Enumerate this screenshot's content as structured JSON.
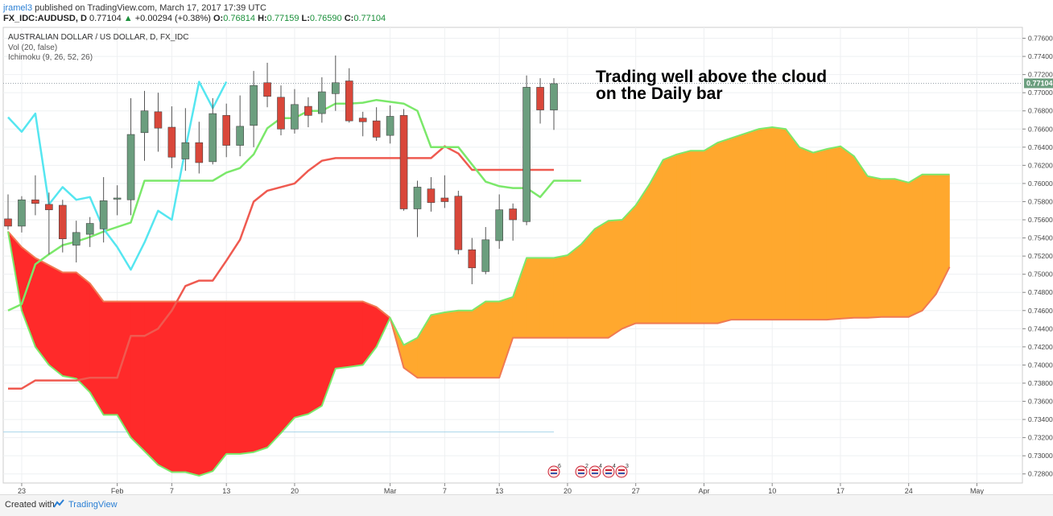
{
  "header": {
    "publisher": "jramel3",
    "published_text": "published on TradingView.com, March 17, 2017 17:39 UTC",
    "symbol_line": "FX_IDC:AUDUSD, D",
    "last": "0.77104",
    "change": "+0.00294 (+0.38%)",
    "open_label": "O:",
    "open": "0.76814",
    "high_label": "H:",
    "high": "0.77159",
    "low_label": "L:",
    "low": "0.76590",
    "close_label": "C:",
    "close": "0.77104"
  },
  "legend": {
    "title": "AUSTRALIAN DOLLAR / US DOLLAR, D, FX_IDC",
    "volume": "Vol (20, false)",
    "ichimoku": "Ichimoku (9, 26, 52, 26)"
  },
  "annotation": {
    "line1": "Trading well above the cloud",
    "line2": "on the Daily bar"
  },
  "price_tag": "0.77104",
  "footer": {
    "made_with": "Created with",
    "brand": "TradingView"
  },
  "event_badges": [
    "6",
    "2",
    "4",
    "4",
    "3"
  ],
  "colors": {
    "up": "#6b9e7e",
    "down": "#d9473a",
    "tenkan": "#55e6f0",
    "kijun": "#ef5a50",
    "chikou": "#7be86a",
    "cloud_bear": "#ff2a2a",
    "cloud_bull": "#ffa82e",
    "span_a": "#7be86a",
    "span_b": "#f07a52"
  },
  "chart_data": {
    "type": "candlestick",
    "title": "AUSTRALIAN DOLLAR / US DOLLAR, D, FX_IDC",
    "y_axis_ticks": [
      "0.72800",
      "0.73000",
      "0.73200",
      "0.73400",
      "0.73600",
      "0.73800",
      "0.74000",
      "0.74200",
      "0.74400",
      "0.74600",
      "0.74800",
      "0.75000",
      "0.75200",
      "0.75400",
      "0.75600",
      "0.75800",
      "0.76000",
      "0.76200",
      "0.76400",
      "0.76600",
      "0.76800",
      "0.77000",
      "0.77200",
      "0.77400",
      "0.77600"
    ],
    "x_axis_ticks": [
      "23",
      "Feb",
      "7",
      "13",
      "20",
      "Mar",
      "7",
      "13",
      "20",
      "27",
      "Apr",
      "10",
      "17",
      "24",
      "May"
    ],
    "ylim": [
      0.727,
      0.7772
    ],
    "candles": [
      {
        "o": 0.7561,
        "h": 0.7588,
        "l": 0.7549,
        "c": 0.7553
      },
      {
        "o": 0.7553,
        "h": 0.7586,
        "l": 0.7546,
        "c": 0.7582
      },
      {
        "o": 0.7582,
        "h": 0.7609,
        "l": 0.7565,
        "c": 0.7578
      },
      {
        "o": 0.7577,
        "h": 0.759,
        "l": 0.7522,
        "c": 0.7571
      },
      {
        "o": 0.7576,
        "h": 0.7582,
        "l": 0.7524,
        "c": 0.7539
      },
      {
        "o": 0.7532,
        "h": 0.7559,
        "l": 0.7513,
        "c": 0.7546
      },
      {
        "o": 0.7544,
        "h": 0.7563,
        "l": 0.753,
        "c": 0.7556
      },
      {
        "o": 0.755,
        "h": 0.7607,
        "l": 0.7535,
        "c": 0.7581
      },
      {
        "o": 0.7583,
        "h": 0.7598,
        "l": 0.7565,
        "c": 0.7584
      },
      {
        "o": 0.7582,
        "h": 0.7694,
        "l": 0.7565,
        "c": 0.7654
      },
      {
        "o": 0.7656,
        "h": 0.7702,
        "l": 0.7625,
        "c": 0.768
      },
      {
        "o": 0.7679,
        "h": 0.77,
        "l": 0.7635,
        "c": 0.7661
      },
      {
        "o": 0.7662,
        "h": 0.7685,
        "l": 0.7617,
        "c": 0.7629
      },
      {
        "o": 0.7627,
        "h": 0.7683,
        "l": 0.7614,
        "c": 0.7645
      },
      {
        "o": 0.7645,
        "h": 0.7668,
        "l": 0.7611,
        "c": 0.7623
      },
      {
        "o": 0.7624,
        "h": 0.7694,
        "l": 0.7621,
        "c": 0.7677
      },
      {
        "o": 0.7675,
        "h": 0.7688,
        "l": 0.7629,
        "c": 0.7642
      },
      {
        "o": 0.7642,
        "h": 0.7697,
        "l": 0.763,
        "c": 0.7663
      },
      {
        "o": 0.7664,
        "h": 0.7724,
        "l": 0.764,
        "c": 0.7708
      },
      {
        "o": 0.7711,
        "h": 0.7733,
        "l": 0.7684,
        "c": 0.7696
      },
      {
        "o": 0.7695,
        "h": 0.7708,
        "l": 0.7653,
        "c": 0.766
      },
      {
        "o": 0.766,
        "h": 0.7704,
        "l": 0.7655,
        "c": 0.7687
      },
      {
        "o": 0.7685,
        "h": 0.7695,
        "l": 0.7662,
        "c": 0.7675
      },
      {
        "o": 0.7677,
        "h": 0.7717,
        "l": 0.7667,
        "c": 0.7701
      },
      {
        "o": 0.7699,
        "h": 0.7741,
        "l": 0.768,
        "c": 0.7711
      },
      {
        "o": 0.7713,
        "h": 0.7727,
        "l": 0.7667,
        "c": 0.7669
      },
      {
        "o": 0.7672,
        "h": 0.7679,
        "l": 0.7652,
        "c": 0.7668
      },
      {
        "o": 0.7669,
        "h": 0.7684,
        "l": 0.7647,
        "c": 0.7651
      },
      {
        "o": 0.7653,
        "h": 0.7686,
        "l": 0.7644,
        "c": 0.7674
      },
      {
        "o": 0.7675,
        "h": 0.7682,
        "l": 0.757,
        "c": 0.7572
      },
      {
        "o": 0.7572,
        "h": 0.7603,
        "l": 0.7541,
        "c": 0.7596
      },
      {
        "o": 0.7594,
        "h": 0.7607,
        "l": 0.7569,
        "c": 0.7579
      },
      {
        "o": 0.7584,
        "h": 0.7609,
        "l": 0.7573,
        "c": 0.758
      },
      {
        "o": 0.7586,
        "h": 0.7592,
        "l": 0.7522,
        "c": 0.7527
      },
      {
        "o": 0.7527,
        "h": 0.754,
        "l": 0.7489,
        "c": 0.7507
      },
      {
        "o": 0.7503,
        "h": 0.7552,
        "l": 0.75,
        "c": 0.7538
      },
      {
        "o": 0.7537,
        "h": 0.7588,
        "l": 0.7528,
        "c": 0.7571
      },
      {
        "o": 0.7572,
        "h": 0.7578,
        "l": 0.7537,
        "c": 0.756
      },
      {
        "o": 0.7558,
        "h": 0.7719,
        "l": 0.7554,
        "c": 0.7706
      },
      {
        "o": 0.7706,
        "h": 0.7716,
        "l": 0.7666,
        "c": 0.7681
      },
      {
        "o": 0.7681,
        "h": 0.7716,
        "l": 0.7659,
        "c": 0.771
      }
    ],
    "series": [
      {
        "name": "Conversion line",
        "role": "tenkan",
        "start_index": 0,
        "values": [
          0.7673,
          0.7657,
          0.7677,
          0.7577,
          0.7596,
          0.7582,
          0.7585,
          0.755,
          0.753,
          0.7505,
          0.7535,
          0.757,
          0.756,
          0.7638,
          0.7712,
          0.7683,
          0.7712
        ]
      },
      {
        "name": "Base line",
        "role": "kijun",
        "start_index": 0,
        "values": [
          0.7374,
          0.7374,
          0.7383,
          0.7383,
          0.7383,
          0.7383,
          0.7386,
          0.7386,
          0.7386,
          0.7432,
          0.7432,
          0.744,
          0.746,
          0.7487,
          0.7493,
          0.7493,
          0.7515,
          0.7538,
          0.758,
          0.7592,
          0.7596,
          0.76,
          0.7614,
          0.7625,
          0.7628,
          0.7628,
          0.7628,
          0.7628,
          0.7628,
          0.7628,
          0.7628,
          0.7628,
          0.7641,
          0.7633,
          0.7615,
          0.7615,
          0.7615,
          0.7615,
          0.7615,
          0.7615,
          0.7615
        ]
      },
      {
        "name": "Lagging span",
        "role": "chikou",
        "start_index": 0,
        "values": [
          0.746,
          0.7467,
          0.7511,
          0.7522,
          0.7532,
          0.7536,
          0.7541,
          0.7547,
          0.7552,
          0.7557,
          0.7603,
          0.7603,
          0.7603,
          0.7603,
          0.7603,
          0.7603,
          0.7612,
          0.7617,
          0.7632,
          0.7661,
          0.7672,
          0.7672,
          0.768,
          0.768,
          0.7688,
          0.7688,
          0.7689,
          0.7692,
          0.769,
          0.7688,
          0.768,
          0.764,
          0.764,
          0.764,
          0.7621,
          0.7602,
          0.7597,
          0.7595,
          0.7595,
          0.7585,
          0.7603,
          0.7603,
          0.7603
        ]
      },
      {
        "name": "Lead 1",
        "role": "span_a",
        "start_index": 0,
        "values": [
          0.7547,
          0.746,
          0.742,
          0.74,
          0.7388,
          0.7385,
          0.737,
          0.7345,
          0.7345,
          0.732,
          0.7305,
          0.729,
          0.7282,
          0.7282,
          0.7278,
          0.7283,
          0.7302,
          0.7302,
          0.7304,
          0.7309,
          0.7325,
          0.7342,
          0.7346,
          0.7355,
          0.7396,
          0.7398,
          0.74,
          0.742,
          0.7452,
          0.7422,
          0.743,
          0.7455,
          0.7458,
          0.746,
          0.746,
          0.747,
          0.747,
          0.7475,
          0.7518,
          0.7518,
          0.7518,
          0.7521,
          0.7533,
          0.755,
          0.7559,
          0.756,
          0.7576,
          0.7599,
          0.7626,
          0.7632,
          0.7636,
          0.7636,
          0.7645,
          0.765,
          0.7655,
          0.766,
          0.7662,
          0.766,
          0.764,
          0.7634,
          0.7638,
          0.7641,
          0.763,
          0.7608,
          0.7605,
          0.7605,
          0.7601,
          0.761,
          0.761,
          0.761
        ]
      },
      {
        "name": "Lead 2",
        "role": "span_b",
        "start_index": 0,
        "values": [
          0.7547,
          0.753,
          0.7518,
          0.751,
          0.7502,
          0.7502,
          0.749,
          0.747,
          0.747,
          0.747,
          0.747,
          0.747,
          0.747,
          0.747,
          0.747,
          0.747,
          0.747,
          0.747,
          0.747,
          0.747,
          0.747,
          0.747,
          0.747,
          0.747,
          0.747,
          0.747,
          0.747,
          0.7464,
          0.7452,
          0.7397,
          0.7386,
          0.7386,
          0.7386,
          0.7386,
          0.7386,
          0.7386,
          0.7386,
          0.743,
          0.743,
          0.743,
          0.743,
          0.743,
          0.743,
          0.743,
          0.743,
          0.744,
          0.7446,
          0.7446,
          0.7446,
          0.7446,
          0.7446,
          0.7446,
          0.7446,
          0.745,
          0.745,
          0.745,
          0.745,
          0.745,
          0.745,
          0.745,
          0.745,
          0.7451,
          0.7452,
          0.7452,
          0.7453,
          0.7453,
          0.7453,
          0.746,
          0.7478,
          0.7508
        ]
      }
    ]
  }
}
